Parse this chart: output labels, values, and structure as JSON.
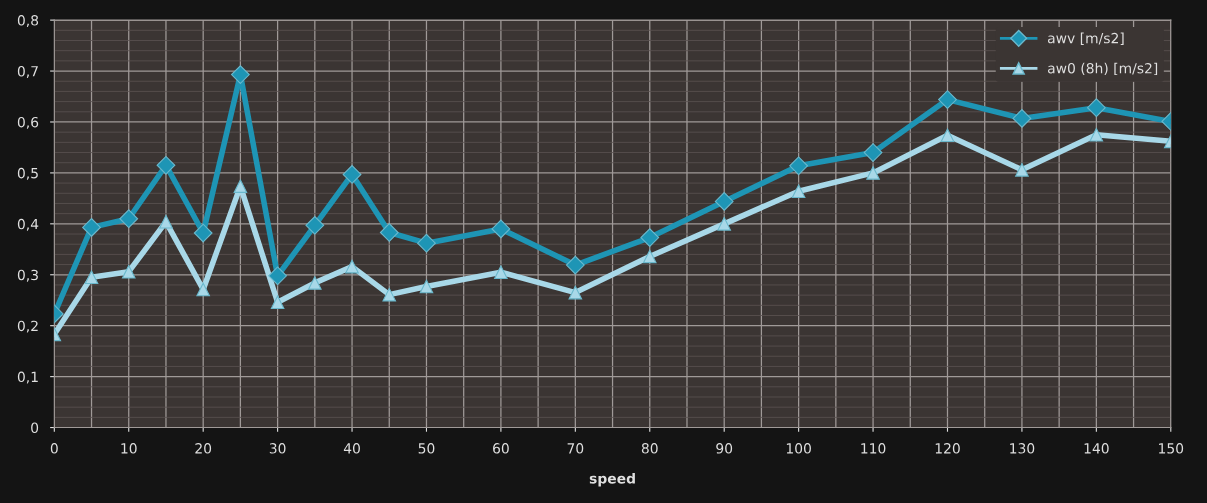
{
  "chart_data": {
    "type": "line",
    "xlabel": "speed",
    "x": [
      0,
      5,
      10,
      15,
      20,
      25,
      30,
      35,
      40,
      45,
      50,
      60,
      70,
      80,
      90,
      100,
      110,
      120,
      130,
      140,
      150
    ],
    "series": [
      {
        "name": "awv [m/s2]",
        "color": "#1e95b5",
        "marker": "diamond",
        "values": [
          0.223,
          0.393,
          0.41,
          0.515,
          0.382,
          0.693,
          0.298,
          0.397,
          0.497,
          0.383,
          0.362,
          0.39,
          0.319,
          0.373,
          0.444,
          0.514,
          0.54,
          0.644,
          0.607,
          0.628,
          0.601
        ]
      },
      {
        "name": "aw0 (8h) [m/s2]",
        "color": "#a8d8e8",
        "marker": "triangle",
        "values": [
          0.183,
          0.295,
          0.306,
          0.404,
          0.271,
          0.474,
          0.246,
          0.284,
          0.316,
          0.261,
          0.277,
          0.305,
          0.265,
          0.336,
          0.4,
          0.464,
          0.5,
          0.574,
          0.506,
          0.575,
          0.562
        ]
      }
    ],
    "xlim": [
      0,
      150
    ],
    "xticks": [
      0,
      10,
      20,
      30,
      40,
      50,
      60,
      70,
      80,
      90,
      100,
      110,
      120,
      130,
      140,
      150
    ],
    "ylim": [
      0,
      0.8
    ],
    "yticks": [
      {
        "value": 0,
        "label": "0"
      },
      {
        "value": 0.1,
        "label": "0,1"
      },
      {
        "value": 0.2,
        "label": "0,2"
      },
      {
        "value": 0.3,
        "label": "0,3"
      },
      {
        "value": 0.4,
        "label": "0,4"
      },
      {
        "value": 0.5,
        "label": "0,5"
      },
      {
        "value": 0.6,
        "label": "0,6"
      },
      {
        "value": 0.7,
        "label": "0,7"
      },
      {
        "value": 0.8,
        "label": "0,8"
      }
    ],
    "grid": true,
    "legend": "top right",
    "line_style": "solid"
  }
}
